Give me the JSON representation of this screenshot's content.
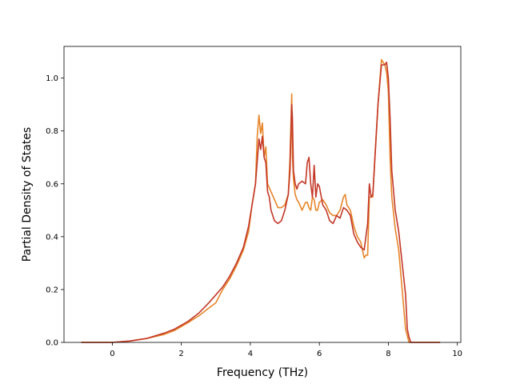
{
  "chart_data": {
    "type": "line",
    "title": "",
    "xlabel": "Frequency (THz)",
    "ylabel": "Partial Density of States",
    "xlim": [
      -1.4,
      10.1
    ],
    "ylim": [
      0.0,
      1.12
    ],
    "xticks": [
      0,
      2,
      4,
      6,
      8,
      10
    ],
    "yticks": [
      0.0,
      0.2,
      0.4,
      0.6,
      0.8,
      1.0
    ],
    "xtick_labels": [
      "0",
      "2",
      "4",
      "6",
      "8",
      "10"
    ],
    "ytick_labels": [
      "0.0",
      "0.2",
      "0.4",
      "0.6",
      "0.8",
      "1.0"
    ],
    "grid": false,
    "legend": "none",
    "series": [
      {
        "color": "#e6852a",
        "x": [
          -0.9,
          0.0,
          0.5,
          1.0,
          1.5,
          1.8,
          2.0,
          2.2,
          2.5,
          2.8,
          3.0,
          3.2,
          3.4,
          3.6,
          3.8,
          3.95,
          4.05,
          4.15,
          4.2,
          4.25,
          4.3,
          4.35,
          4.4,
          4.45,
          4.5,
          4.6,
          4.7,
          4.8,
          4.9,
          5.0,
          5.1,
          5.15,
          5.2,
          5.22,
          5.25,
          5.3,
          5.35,
          5.4,
          5.5,
          5.6,
          5.65,
          5.7,
          5.75,
          5.8,
          5.85,
          5.9,
          5.95,
          6.0,
          6.1,
          6.2,
          6.3,
          6.4,
          6.5,
          6.6,
          6.7,
          6.75,
          6.8,
          6.9,
          7.0,
          7.1,
          7.2,
          7.3,
          7.35,
          7.4,
          7.45,
          7.5,
          7.55,
          7.6,
          7.7,
          7.8,
          7.9,
          7.95,
          8.0,
          8.05,
          8.1,
          8.2,
          8.3,
          8.4,
          8.5,
          8.6,
          8.65,
          8.7,
          9.0,
          9.5
        ],
        "values": [
          0.0,
          0.0,
          0.005,
          0.015,
          0.03,
          0.045,
          0.06,
          0.075,
          0.1,
          0.13,
          0.15,
          0.2,
          0.24,
          0.29,
          0.35,
          0.42,
          0.52,
          0.6,
          0.78,
          0.86,
          0.79,
          0.83,
          0.7,
          0.74,
          0.6,
          0.57,
          0.54,
          0.51,
          0.51,
          0.52,
          0.56,
          0.7,
          0.94,
          0.7,
          0.62,
          0.56,
          0.54,
          0.53,
          0.5,
          0.53,
          0.53,
          0.51,
          0.5,
          0.55,
          0.54,
          0.5,
          0.5,
          0.53,
          0.54,
          0.52,
          0.49,
          0.48,
          0.48,
          0.5,
          0.55,
          0.56,
          0.52,
          0.5,
          0.44,
          0.4,
          0.38,
          0.32,
          0.33,
          0.33,
          0.55,
          0.55,
          0.55,
          0.68,
          0.9,
          1.07,
          1.05,
          1.02,
          0.95,
          0.7,
          0.55,
          0.43,
          0.35,
          0.2,
          0.05,
          0.0,
          0.0,
          0.0,
          0.0,
          0.0
        ]
      },
      {
        "color": "#c33727",
        "x": [
          -0.9,
          0.0,
          0.5,
          1.0,
          1.5,
          1.8,
          2.0,
          2.2,
          2.5,
          2.8,
          3.0,
          3.2,
          3.4,
          3.6,
          3.8,
          3.95,
          4.05,
          4.15,
          4.25,
          4.3,
          4.35,
          4.4,
          4.45,
          4.5,
          4.55,
          4.6,
          4.65,
          4.7,
          4.8,
          4.9,
          5.0,
          5.1,
          5.15,
          5.2,
          5.22,
          5.25,
          5.3,
          5.35,
          5.4,
          5.5,
          5.6,
          5.65,
          5.7,
          5.75,
          5.8,
          5.85,
          5.9,
          5.95,
          6.0,
          6.1,
          6.2,
          6.3,
          6.4,
          6.5,
          6.6,
          6.7,
          6.8,
          6.9,
          7.0,
          7.1,
          7.2,
          7.3,
          7.4,
          7.45,
          7.5,
          7.55,
          7.6,
          7.7,
          7.8,
          7.9,
          7.95,
          8.0,
          8.05,
          8.1,
          8.2,
          8.3,
          8.4,
          8.5,
          8.55,
          8.6,
          8.65,
          9.0,
          9.5
        ],
        "values": [
          0.0,
          0.0,
          0.005,
          0.015,
          0.035,
          0.05,
          0.065,
          0.08,
          0.11,
          0.15,
          0.18,
          0.21,
          0.25,
          0.3,
          0.36,
          0.44,
          0.52,
          0.6,
          0.77,
          0.73,
          0.78,
          0.7,
          0.68,
          0.57,
          0.55,
          0.5,
          0.48,
          0.46,
          0.45,
          0.46,
          0.5,
          0.56,
          0.65,
          0.9,
          0.85,
          0.65,
          0.6,
          0.58,
          0.6,
          0.61,
          0.6,
          0.68,
          0.7,
          0.6,
          0.55,
          0.67,
          0.55,
          0.6,
          0.59,
          0.52,
          0.5,
          0.46,
          0.45,
          0.48,
          0.47,
          0.51,
          0.5,
          0.48,
          0.41,
          0.38,
          0.36,
          0.35,
          0.45,
          0.6,
          0.55,
          0.56,
          0.67,
          0.9,
          1.05,
          1.05,
          1.06,
          1.0,
          0.85,
          0.65,
          0.5,
          0.42,
          0.3,
          0.18,
          0.05,
          0.02,
          0.0,
          0.0,
          0.0
        ]
      }
    ]
  }
}
